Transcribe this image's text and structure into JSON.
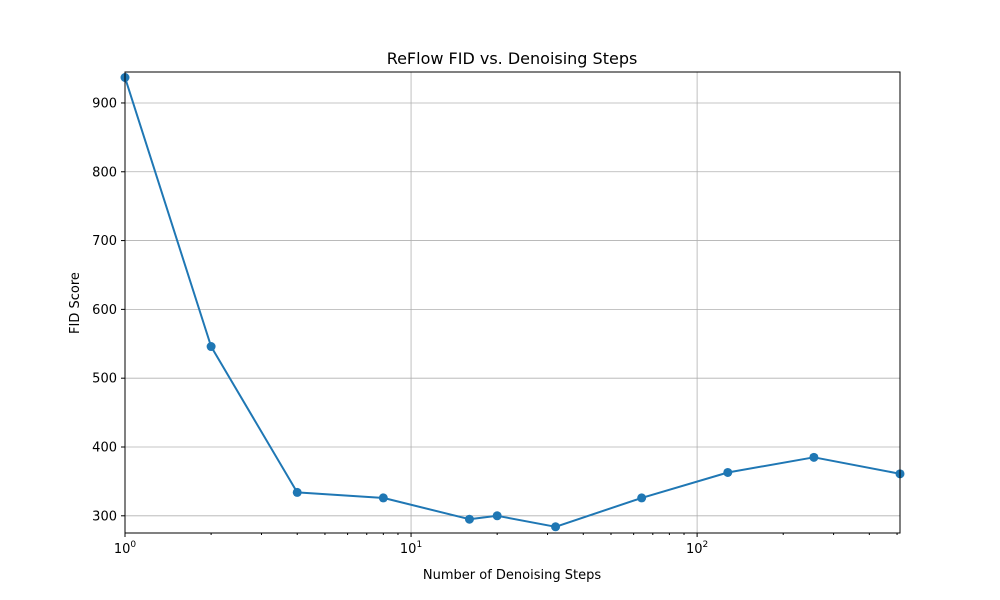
{
  "chart_data": {
    "type": "line",
    "title": "ReFlow FID vs. Denoising Steps",
    "xlabel": "Number of Denoising Steps",
    "ylabel": "FID Score",
    "xscale": "log",
    "xlim": [
      1,
      512
    ],
    "ylim": [
      275,
      945
    ],
    "grid": true,
    "legend": "none",
    "x_ticks": [
      {
        "value": 1,
        "base": "10",
        "exp": "0"
      },
      {
        "value": 10,
        "base": "10",
        "exp": "1"
      },
      {
        "value": 100,
        "base": "10",
        "exp": "2"
      }
    ],
    "y_ticks": [
      300,
      400,
      500,
      600,
      700,
      800,
      900
    ],
    "series": [
      {
        "color": "#1f77b4",
        "marker": "circle",
        "x": [
          1,
          2,
          4,
          8,
          16,
          20,
          32,
          64,
          128,
          256,
          512
        ],
        "y": [
          937,
          546,
          334,
          326,
          295,
          300,
          284,
          326,
          363,
          385,
          361
        ]
      }
    ]
  }
}
